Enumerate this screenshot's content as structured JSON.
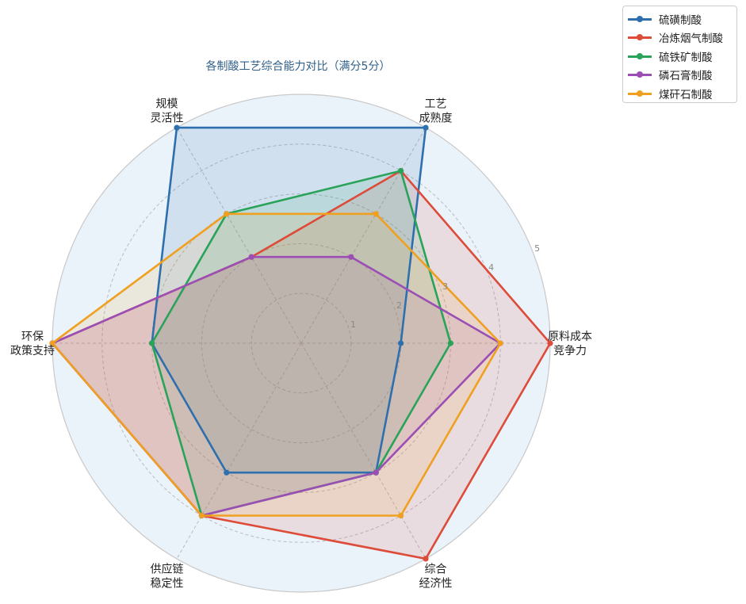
{
  "chart_data": {
    "type": "radar",
    "title": "各制酸工艺综合能力对比（满分5分）",
    "axes": [
      "原料成本\n竞争力",
      "工艺\n成熟度",
      "规模\n灵活性",
      "环保\n政策支持",
      "供应链\n稳定性",
      "综合\n经济性"
    ],
    "rlim": [
      0,
      5
    ],
    "rticks": [
      1,
      2,
      3,
      4,
      5
    ],
    "grid": true,
    "legend_position": "top-right",
    "series": [
      {
        "name": "硫磺制酸",
        "color": "#2e6fad",
        "values": [
          2,
          5,
          5,
          3,
          3,
          3
        ]
      },
      {
        "name": "冶炼烟气制酸",
        "color": "#dd4b39",
        "values": [
          5,
          4,
          2,
          5,
          4,
          5
        ]
      },
      {
        "name": "硫铁矿制酸",
        "color": "#2aa35a",
        "values": [
          3,
          4,
          3,
          3,
          4,
          3
        ]
      },
      {
        "name": "磷石膏制酸",
        "color": "#9b4fb5",
        "values": [
          4,
          2,
          2,
          5,
          4,
          3
        ]
      },
      {
        "name": "煤矸石制酸",
        "color": "#f0a020",
        "values": [
          4,
          3,
          3,
          5,
          4,
          4
        ]
      }
    ]
  }
}
